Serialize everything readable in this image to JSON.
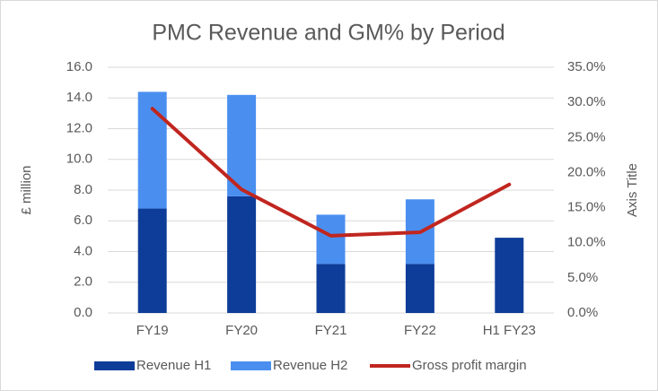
{
  "chart_data": {
    "type": "bar-line",
    "title": "PMC Revenue and GM% by Period",
    "y_label": "£ million",
    "y2_label": "Axis Title",
    "categories": [
      "FY19",
      "FY20",
      "FY21",
      "FY22",
      "H1 FY23"
    ],
    "series": [
      {
        "name": "Revenue H1",
        "color": "#0e3d99",
        "type": "bar",
        "values": [
          6.8,
          7.6,
          3.2,
          3.2,
          4.9
        ]
      },
      {
        "name": "Revenue H2",
        "color": "#4a8ff0",
        "type": "bar",
        "values": [
          7.6,
          6.6,
          3.2,
          4.2,
          null
        ]
      },
      {
        "name": "Gross profit margin",
        "color": "#c0261f",
        "type": "line",
        "axis": "y2",
        "values": [
          29.1,
          17.6,
          11.0,
          11.5,
          18.3
        ]
      }
    ],
    "ylim": [
      0,
      16
    ],
    "yticks": [
      {
        "value": 0,
        "label": "0.0"
      },
      {
        "value": 2,
        "label": "2.0"
      },
      {
        "value": 4,
        "label": "4.0"
      },
      {
        "value": 6,
        "label": "6.0"
      },
      {
        "value": 8,
        "label": "8.0"
      },
      {
        "value": 10,
        "label": "10.0"
      },
      {
        "value": 12,
        "label": "12.0"
      },
      {
        "value": 14,
        "label": "14.0"
      },
      {
        "value": 16,
        "label": "16.0"
      }
    ],
    "y2lim": [
      0,
      35
    ],
    "y2ticks": [
      {
        "value": 0,
        "label": "0.0%"
      },
      {
        "value": 5,
        "label": "5.0%"
      },
      {
        "value": 10,
        "label": "10.0%"
      },
      {
        "value": 15,
        "label": "15.0%"
      },
      {
        "value": 20,
        "label": "20.0%"
      },
      {
        "value": 25,
        "label": "25.0%"
      },
      {
        "value": 30,
        "label": "30.0%"
      },
      {
        "value": 35,
        "label": "35.0%"
      }
    ],
    "stacked": true,
    "grid": true,
    "legend": "bottom"
  }
}
